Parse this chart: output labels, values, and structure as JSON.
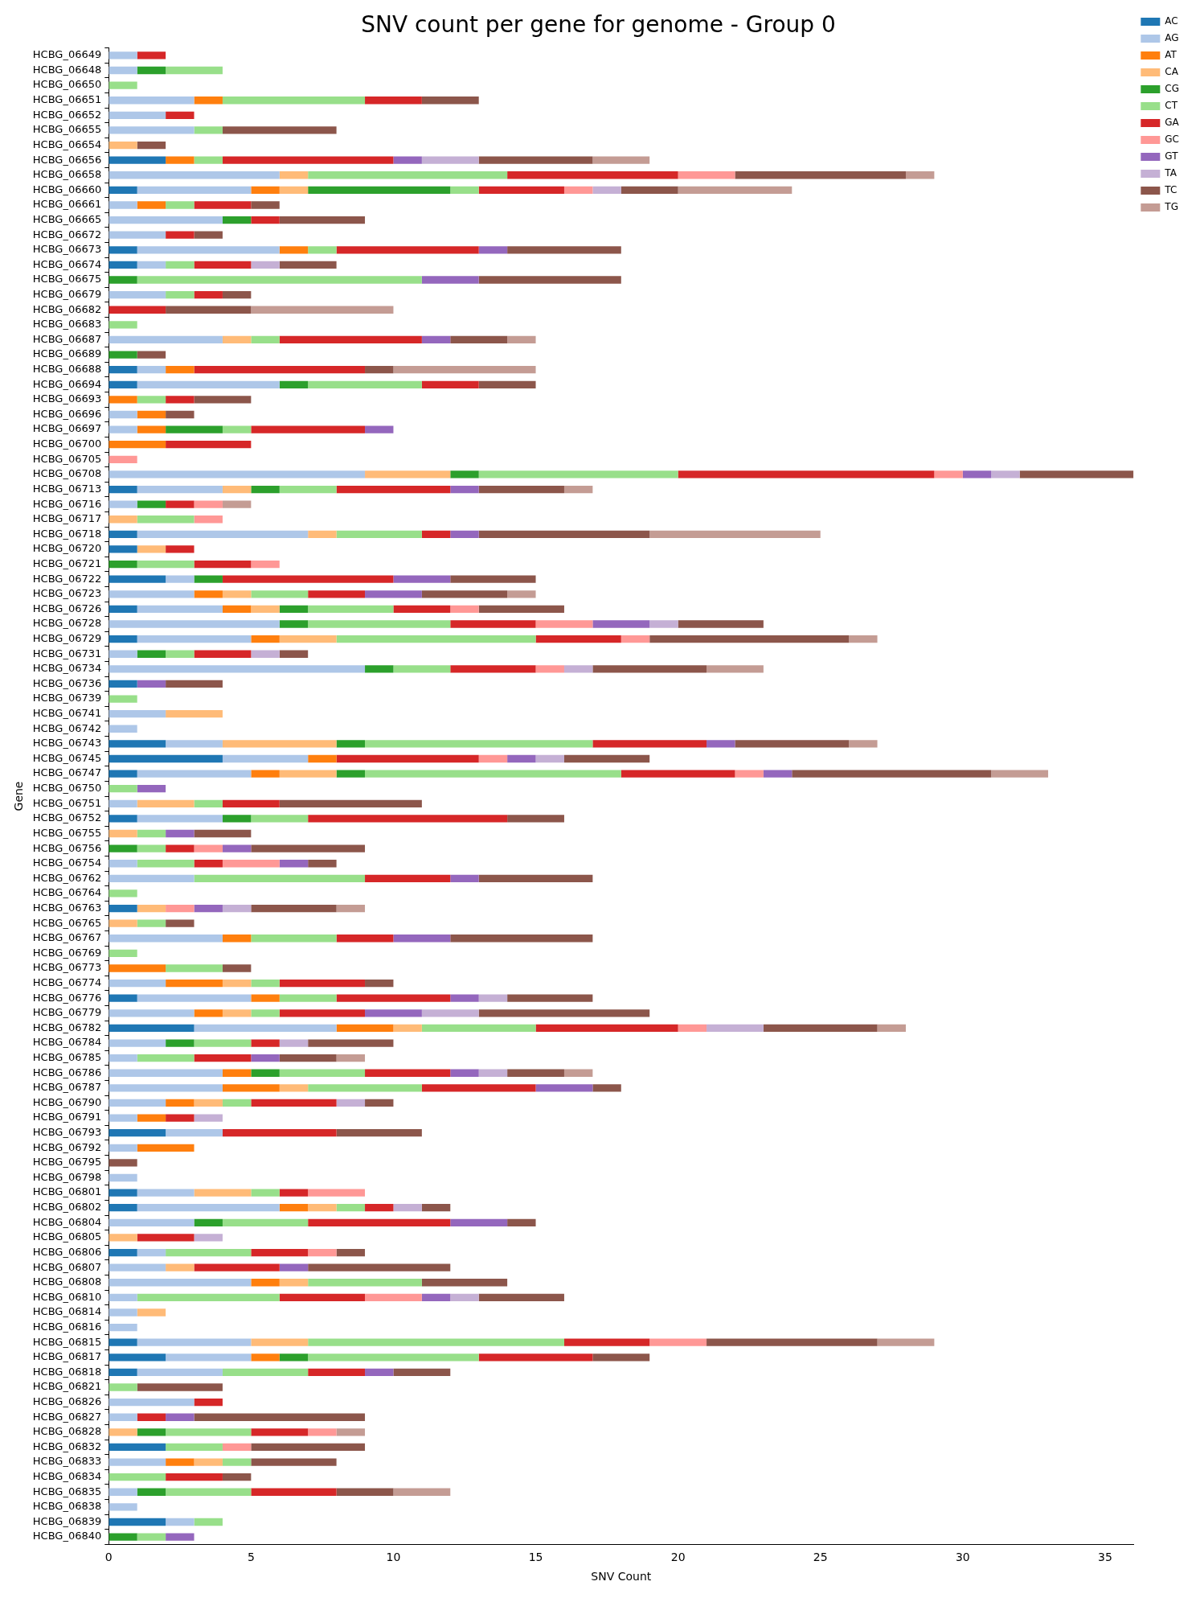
{
  "chart_data": {
    "type": "bar",
    "orientation": "horizontal",
    "stacked": true,
    "title": "SNV count per gene for genome - Group 0",
    "xlabel": "SNV Count",
    "ylabel": "Gene",
    "legend": "top right",
    "grid": false,
    "xlim": [
      0,
      36
    ],
    "xticks": [
      0,
      5,
      10,
      15,
      20,
      25,
      30,
      35
    ],
    "categories": [
      "HCBG_06649",
      "HCBG_06648",
      "HCBG_06650",
      "HCBG_06651",
      "HCBG_06652",
      "HCBG_06655",
      "HCBG_06654",
      "HCBG_06656",
      "HCBG_06658",
      "HCBG_06660",
      "HCBG_06661",
      "HCBG_06665",
      "HCBG_06672",
      "HCBG_06673",
      "HCBG_06674",
      "HCBG_06675",
      "HCBG_06679",
      "HCBG_06682",
      "HCBG_06683",
      "HCBG_06687",
      "HCBG_06689",
      "HCBG_06688",
      "HCBG_06694",
      "HCBG_06693",
      "HCBG_06696",
      "HCBG_06697",
      "HCBG_06700",
      "HCBG_06705",
      "HCBG_06708",
      "HCBG_06713",
      "HCBG_06716",
      "HCBG_06717",
      "HCBG_06718",
      "HCBG_06720",
      "HCBG_06721",
      "HCBG_06722",
      "HCBG_06723",
      "HCBG_06726",
      "HCBG_06728",
      "HCBG_06729",
      "HCBG_06731",
      "HCBG_06734",
      "HCBG_06736",
      "HCBG_06739",
      "HCBG_06741",
      "HCBG_06742",
      "HCBG_06743",
      "HCBG_06745",
      "HCBG_06747",
      "HCBG_06750",
      "HCBG_06751",
      "HCBG_06752",
      "HCBG_06755",
      "HCBG_06756",
      "HCBG_06754",
      "HCBG_06762",
      "HCBG_06764",
      "HCBG_06763",
      "HCBG_06765",
      "HCBG_06767",
      "HCBG_06769",
      "HCBG_06773",
      "HCBG_06774",
      "HCBG_06776",
      "HCBG_06779",
      "HCBG_06782",
      "HCBG_06784",
      "HCBG_06785",
      "HCBG_06786",
      "HCBG_06787",
      "HCBG_06790",
      "HCBG_06791",
      "HCBG_06793",
      "HCBG_06792",
      "HCBG_06795",
      "HCBG_06798",
      "HCBG_06801",
      "HCBG_06802",
      "HCBG_06804",
      "HCBG_06805",
      "HCBG_06806",
      "HCBG_06807",
      "HCBG_06808",
      "HCBG_06810",
      "HCBG_06814",
      "HCBG_06816",
      "HCBG_06815",
      "HCBG_06817",
      "HCBG_06818",
      "HCBG_06821",
      "HCBG_06826",
      "HCBG_06827",
      "HCBG_06828",
      "HCBG_06832",
      "HCBG_06833",
      "HCBG_06834",
      "HCBG_06835",
      "HCBG_06838",
      "HCBG_06839",
      "HCBG_06840"
    ],
    "series": [
      {
        "name": "AC",
        "color": "#1f77b4",
        "values": [
          0,
          0,
          0,
          0,
          0,
          0,
          0,
          2,
          0,
          1,
          0,
          0,
          0,
          1,
          1,
          0,
          0,
          0,
          0,
          0,
          0,
          1,
          1,
          0,
          0,
          0,
          0,
          0,
          0,
          1,
          0,
          0,
          1,
          1,
          0,
          2,
          0,
          1,
          0,
          1,
          0,
          0,
          1,
          0,
          0,
          0,
          2,
          4,
          1,
          0,
          0,
          1,
          0,
          0,
          0,
          0,
          0,
          1,
          0,
          0,
          0,
          0,
          0,
          1,
          0,
          3,
          0,
          0,
          0,
          0,
          0,
          0,
          2,
          0,
          0,
          0,
          1,
          1,
          0,
          0,
          1,
          0,
          0,
          0,
          0,
          0,
          1,
          2,
          1,
          0,
          0,
          0,
          0,
          2,
          0,
          0,
          0,
          0,
          2,
          0
        ]
      },
      {
        "name": "AG",
        "color": "#aec7e8",
        "values": [
          1,
          1,
          0,
          3,
          2,
          3,
          0,
          0,
          6,
          4,
          1,
          4,
          2,
          5,
          1,
          0,
          2,
          0,
          0,
          4,
          0,
          1,
          5,
          0,
          1,
          1,
          0,
          0,
          9,
          3,
          1,
          0,
          6,
          0,
          0,
          1,
          3,
          3,
          6,
          4,
          1,
          9,
          0,
          0,
          2,
          1,
          2,
          3,
          4,
          0,
          1,
          3,
          0,
          0,
          1,
          3,
          0,
          0,
          0,
          4,
          0,
          0,
          2,
          4,
          3,
          5,
          2,
          1,
          4,
          4,
          2,
          1,
          2,
          1,
          0,
          1,
          2,
          5,
          3,
          0,
          1,
          2,
          5,
          1,
          1,
          1,
          4,
          3,
          3,
          0,
          3,
          1,
          0,
          0,
          2,
          0,
          1,
          1,
          1,
          0
        ]
      },
      {
        "name": "AT",
        "color": "#ff7f0e",
        "values": [
          0,
          0,
          0,
          1,
          0,
          0,
          0,
          1,
          0,
          1,
          1,
          0,
          0,
          1,
          0,
          0,
          0,
          0,
          0,
          0,
          0,
          1,
          0,
          1,
          1,
          1,
          2,
          0,
          0,
          0,
          0,
          0,
          0,
          0,
          0,
          0,
          1,
          1,
          0,
          1,
          0,
          0,
          0,
          0,
          0,
          0,
          0,
          1,
          1,
          0,
          0,
          0,
          0,
          0,
          0,
          0,
          0,
          0,
          0,
          1,
          0,
          2,
          2,
          1,
          1,
          2,
          0,
          0,
          1,
          2,
          1,
          1,
          0,
          2,
          0,
          0,
          0,
          1,
          0,
          0,
          0,
          0,
          1,
          0,
          0,
          0,
          0,
          1,
          0,
          0,
          0,
          0,
          0,
          0,
          1,
          0,
          0,
          0,
          0,
          0
        ]
      },
      {
        "name": "CA",
        "color": "#ffbb78",
        "values": [
          0,
          0,
          0,
          0,
          0,
          0,
          1,
          0,
          1,
          1,
          0,
          0,
          0,
          0,
          0,
          0,
          0,
          0,
          0,
          1,
          0,
          0,
          0,
          0,
          0,
          0,
          0,
          0,
          3,
          1,
          0,
          1,
          1,
          1,
          0,
          0,
          1,
          1,
          0,
          2,
          0,
          0,
          0,
          0,
          2,
          0,
          4,
          0,
          2,
          0,
          2,
          0,
          1,
          0,
          0,
          0,
          0,
          1,
          1,
          0,
          0,
          0,
          1,
          0,
          1,
          1,
          0,
          0,
          0,
          1,
          1,
          0,
          0,
          0,
          0,
          0,
          2,
          1,
          0,
          1,
          0,
          1,
          1,
          0,
          1,
          0,
          2,
          0,
          0,
          0,
          0,
          0,
          1,
          0,
          1,
          0,
          0,
          0,
          0,
          0
        ]
      },
      {
        "name": "CG",
        "color": "#2ca02c",
        "values": [
          0,
          1,
          0,
          0,
          0,
          0,
          0,
          0,
          0,
          5,
          0,
          1,
          0,
          0,
          0,
          1,
          0,
          0,
          0,
          0,
          1,
          0,
          1,
          0,
          0,
          2,
          0,
          0,
          1,
          1,
          1,
          0,
          0,
          0,
          1,
          1,
          0,
          1,
          1,
          0,
          1,
          1,
          0,
          0,
          0,
          0,
          1,
          0,
          1,
          0,
          0,
          1,
          0,
          1,
          0,
          0,
          0,
          0,
          0,
          0,
          0,
          0,
          0,
          0,
          0,
          0,
          1,
          0,
          1,
          0,
          0,
          0,
          0,
          0,
          0,
          0,
          0,
          0,
          1,
          0,
          0,
          0,
          0,
          0,
          0,
          0,
          0,
          1,
          0,
          0,
          0,
          0,
          1,
          0,
          0,
          0,
          1,
          0,
          0,
          1
        ]
      },
      {
        "name": "CT",
        "color": "#98df8a",
        "values": [
          0,
          2,
          1,
          5,
          0,
          1,
          0,
          1,
          7,
          1,
          1,
          0,
          0,
          1,
          1,
          10,
          1,
          0,
          1,
          1,
          0,
          0,
          4,
          1,
          0,
          1,
          0,
          0,
          7,
          2,
          0,
          2,
          3,
          0,
          2,
          0,
          2,
          3,
          5,
          7,
          1,
          2,
          0,
          1,
          0,
          0,
          8,
          0,
          9,
          1,
          1,
          2,
          1,
          1,
          2,
          6,
          1,
          0,
          1,
          3,
          1,
          2,
          1,
          2,
          1,
          4,
          2,
          2,
          3,
          4,
          1,
          0,
          0,
          0,
          0,
          0,
          1,
          1,
          3,
          0,
          3,
          0,
          4,
          5,
          0,
          0,
          9,
          6,
          3,
          1,
          0,
          0,
          3,
          2,
          1,
          2,
          3,
          0,
          1,
          1
        ]
      },
      {
        "name": "GA",
        "color": "#d62728",
        "values": [
          1,
          0,
          0,
          2,
          1,
          0,
          0,
          6,
          6,
          3,
          2,
          1,
          1,
          5,
          2,
          0,
          1,
          2,
          0,
          5,
          0,
          6,
          2,
          1,
          0,
          4,
          3,
          0,
          9,
          4,
          1,
          0,
          1,
          1,
          2,
          6,
          2,
          2,
          3,
          3,
          2,
          3,
          0,
          0,
          0,
          0,
          4,
          5,
          4,
          0,
          2,
          7,
          0,
          1,
          1,
          3,
          0,
          0,
          0,
          2,
          0,
          0,
          3,
          4,
          3,
          5,
          1,
          2,
          3,
          4,
          3,
          1,
          4,
          0,
          0,
          0,
          1,
          1,
          5,
          2,
          2,
          3,
          0,
          3,
          0,
          0,
          3,
          4,
          2,
          0,
          1,
          1,
          2,
          0,
          0,
          2,
          3,
          0,
          0,
          0
        ]
      },
      {
        "name": "GC",
        "color": "#ff9896",
        "values": [
          0,
          0,
          0,
          0,
          0,
          0,
          0,
          0,
          2,
          1,
          0,
          0,
          0,
          0,
          0,
          0,
          0,
          0,
          0,
          0,
          0,
          0,
          0,
          0,
          0,
          0,
          0,
          1,
          1,
          0,
          1,
          1,
          0,
          0,
          1,
          0,
          0,
          1,
          2,
          1,
          0,
          1,
          0,
          0,
          0,
          0,
          0,
          1,
          1,
          0,
          0,
          0,
          0,
          1,
          2,
          0,
          0,
          1,
          0,
          0,
          0,
          0,
          0,
          0,
          0,
          1,
          0,
          0,
          0,
          0,
          0,
          0,
          0,
          0,
          0,
          0,
          2,
          0,
          0,
          0,
          1,
          0,
          0,
          2,
          0,
          0,
          2,
          0,
          0,
          0,
          0,
          0,
          1,
          1,
          0,
          0,
          0,
          0,
          0,
          0
        ]
      },
      {
        "name": "GT",
        "color": "#9467bd",
        "values": [
          0,
          0,
          0,
          0,
          0,
          0,
          0,
          1,
          0,
          0,
          0,
          0,
          0,
          1,
          0,
          2,
          0,
          0,
          0,
          1,
          0,
          0,
          0,
          0,
          0,
          1,
          0,
          0,
          1,
          1,
          0,
          0,
          1,
          0,
          0,
          2,
          2,
          0,
          2,
          0,
          0,
          0,
          1,
          0,
          0,
          0,
          1,
          1,
          1,
          1,
          0,
          0,
          1,
          1,
          1,
          1,
          0,
          1,
          0,
          2,
          0,
          0,
          0,
          1,
          2,
          0,
          0,
          1,
          1,
          2,
          0,
          0,
          0,
          0,
          0,
          0,
          0,
          0,
          2,
          0,
          0,
          1,
          0,
          1,
          0,
          0,
          0,
          0,
          1,
          0,
          0,
          1,
          0,
          0,
          0,
          0,
          0,
          0,
          0,
          1
        ]
      },
      {
        "name": "TA",
        "color": "#c5b0d5",
        "values": [
          0,
          0,
          0,
          0,
          0,
          0,
          0,
          2,
          0,
          1,
          0,
          0,
          0,
          0,
          1,
          0,
          0,
          0,
          0,
          0,
          0,
          0,
          0,
          0,
          0,
          0,
          0,
          0,
          1,
          0,
          0,
          0,
          0,
          0,
          0,
          0,
          0,
          0,
          1,
          0,
          1,
          1,
          0,
          0,
          0,
          0,
          0,
          1,
          0,
          0,
          0,
          0,
          0,
          0,
          0,
          0,
          0,
          1,
          0,
          0,
          0,
          0,
          0,
          1,
          2,
          2,
          1,
          0,
          1,
          0,
          1,
          1,
          0,
          0,
          0,
          0,
          0,
          1,
          0,
          1,
          0,
          0,
          0,
          1,
          0,
          0,
          0,
          0,
          0,
          0,
          0,
          0,
          0,
          0,
          0,
          0,
          0,
          0,
          0,
          0
        ]
      },
      {
        "name": "TC",
        "color": "#8c564b",
        "values": [
          0,
          0,
          0,
          2,
          0,
          4,
          1,
          4,
          6,
          2,
          1,
          3,
          1,
          4,
          2,
          5,
          1,
          3,
          0,
          2,
          1,
          1,
          2,
          2,
          1,
          0,
          0,
          0,
          4,
          3,
          0,
          0,
          6,
          0,
          0,
          3,
          3,
          3,
          3,
          7,
          1,
          4,
          2,
          0,
          0,
          0,
          4,
          3,
          7,
          0,
          5,
          2,
          2,
          4,
          1,
          4,
          0,
          3,
          1,
          5,
          0,
          1,
          1,
          3,
          6,
          4,
          3,
          2,
          2,
          1,
          1,
          0,
          3,
          0,
          1,
          0,
          0,
          1,
          1,
          0,
          1,
          5,
          3,
          3,
          0,
          0,
          6,
          2,
          2,
          3,
          0,
          6,
          0,
          4,
          3,
          1,
          2,
          0,
          0,
          0
        ]
      },
      {
        "name": "TG",
        "color": "#c49c94",
        "values": [
          0,
          0,
          0,
          0,
          0,
          0,
          0,
          2,
          1,
          4,
          0,
          0,
          0,
          0,
          0,
          0,
          0,
          5,
          0,
          1,
          0,
          5,
          0,
          0,
          0,
          0,
          0,
          0,
          0,
          1,
          1,
          0,
          6,
          0,
          0,
          0,
          1,
          0,
          0,
          1,
          0,
          2,
          0,
          0,
          0,
          0,
          1,
          0,
          2,
          0,
          0,
          0,
          0,
          0,
          0,
          0,
          0,
          1,
          0,
          0,
          0,
          0,
          0,
          0,
          0,
          1,
          0,
          1,
          1,
          0,
          0,
          0,
          0,
          0,
          0,
          0,
          0,
          0,
          0,
          0,
          0,
          0,
          0,
          0,
          0,
          0,
          2,
          0,
          0,
          0,
          0,
          0,
          1,
          0,
          0,
          0,
          2,
          0,
          0,
          0
        ]
      }
    ]
  }
}
